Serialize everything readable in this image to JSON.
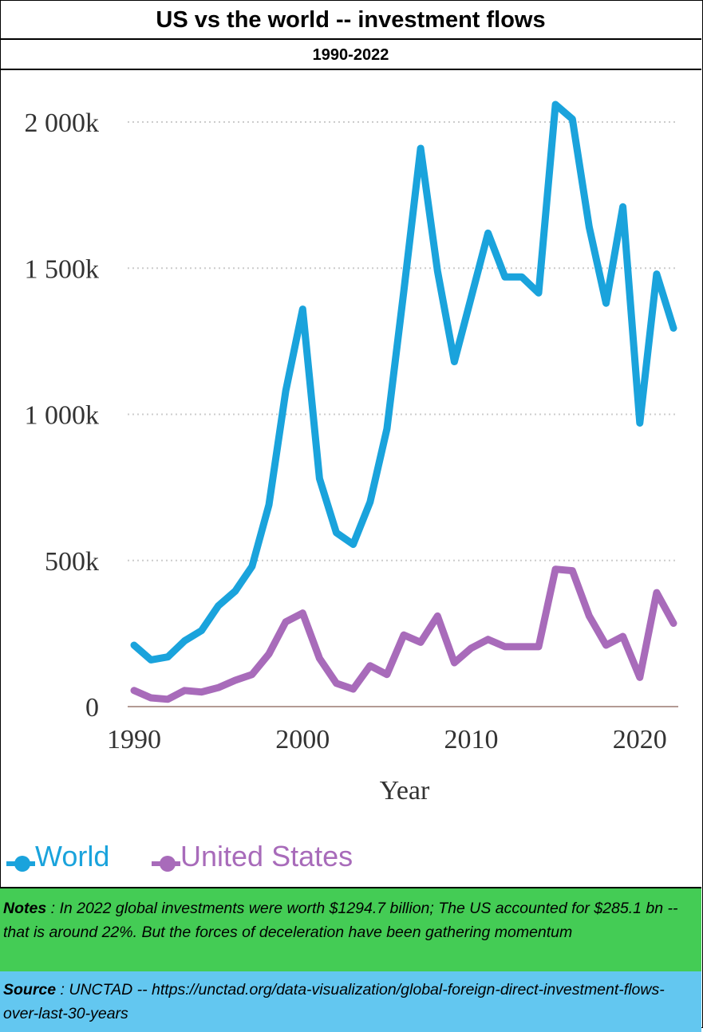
{
  "header": {
    "title": "US vs the world -- investment flows",
    "subtitle": "1990-2022"
  },
  "chart_data": {
    "type": "line",
    "xlabel": "Year",
    "ylabel": "",
    "xlim": [
      1990,
      2022
    ],
    "ylim": [
      0,
      2100
    ],
    "x_ticks": [
      1990,
      2000,
      2010,
      2020
    ],
    "y_ticks": [
      {
        "value": 0,
        "label": "0"
      },
      {
        "value": 500,
        "label": "500k"
      },
      {
        "value": 1000,
        "label": "1 000k"
      },
      {
        "value": 1500,
        "label": "1 500k"
      },
      {
        "value": 2000,
        "label": "2 000k"
      }
    ],
    "grid": "horizontal dotted",
    "legend_position": "bottom-left",
    "x": [
      1990,
      1991,
      1992,
      1993,
      1994,
      1995,
      1996,
      1997,
      1998,
      1999,
      2000,
      2001,
      2002,
      2003,
      2004,
      2005,
      2006,
      2007,
      2008,
      2009,
      2010,
      2011,
      2012,
      2013,
      2014,
      2015,
      2016,
      2017,
      2018,
      2019,
      2020,
      2021,
      2022
    ],
    "series": [
      {
        "name": "World",
        "color": "#1aa3dc",
        "values": [
          210,
          160,
          170,
          225,
          260,
          345,
          395,
          480,
          690,
          1080,
          1360,
          780,
          595,
          555,
          700,
          950,
          1420,
          1910,
          1490,
          1180,
          1400,
          1620,
          1470,
          1470,
          1415,
          2060,
          2010,
          1640,
          1380,
          1710,
          970,
          1480,
          1295
        ]
      },
      {
        "name": "United States",
        "color": "#a86bba",
        "values": [
          55,
          30,
          25,
          55,
          50,
          65,
          90,
          110,
          180,
          290,
          320,
          165,
          80,
          60,
          140,
          110,
          245,
          220,
          310,
          150,
          200,
          230,
          205,
          205,
          205,
          470,
          465,
          310,
          210,
          240,
          100,
          390,
          285
        ]
      }
    ]
  },
  "notes": {
    "label": "Notes",
    "text": " : In 2022 global investments were worth $1294.7 billion; The US accounted for $285.1 bn -- that is around 22%.  But the forces of deceleration have been gathering momentum"
  },
  "source": {
    "label": "Source",
    "text": " : UNCTAD -- https://unctad.org/data-visualization/global-foreign-direct-investment-flows-over-last-30-years"
  }
}
